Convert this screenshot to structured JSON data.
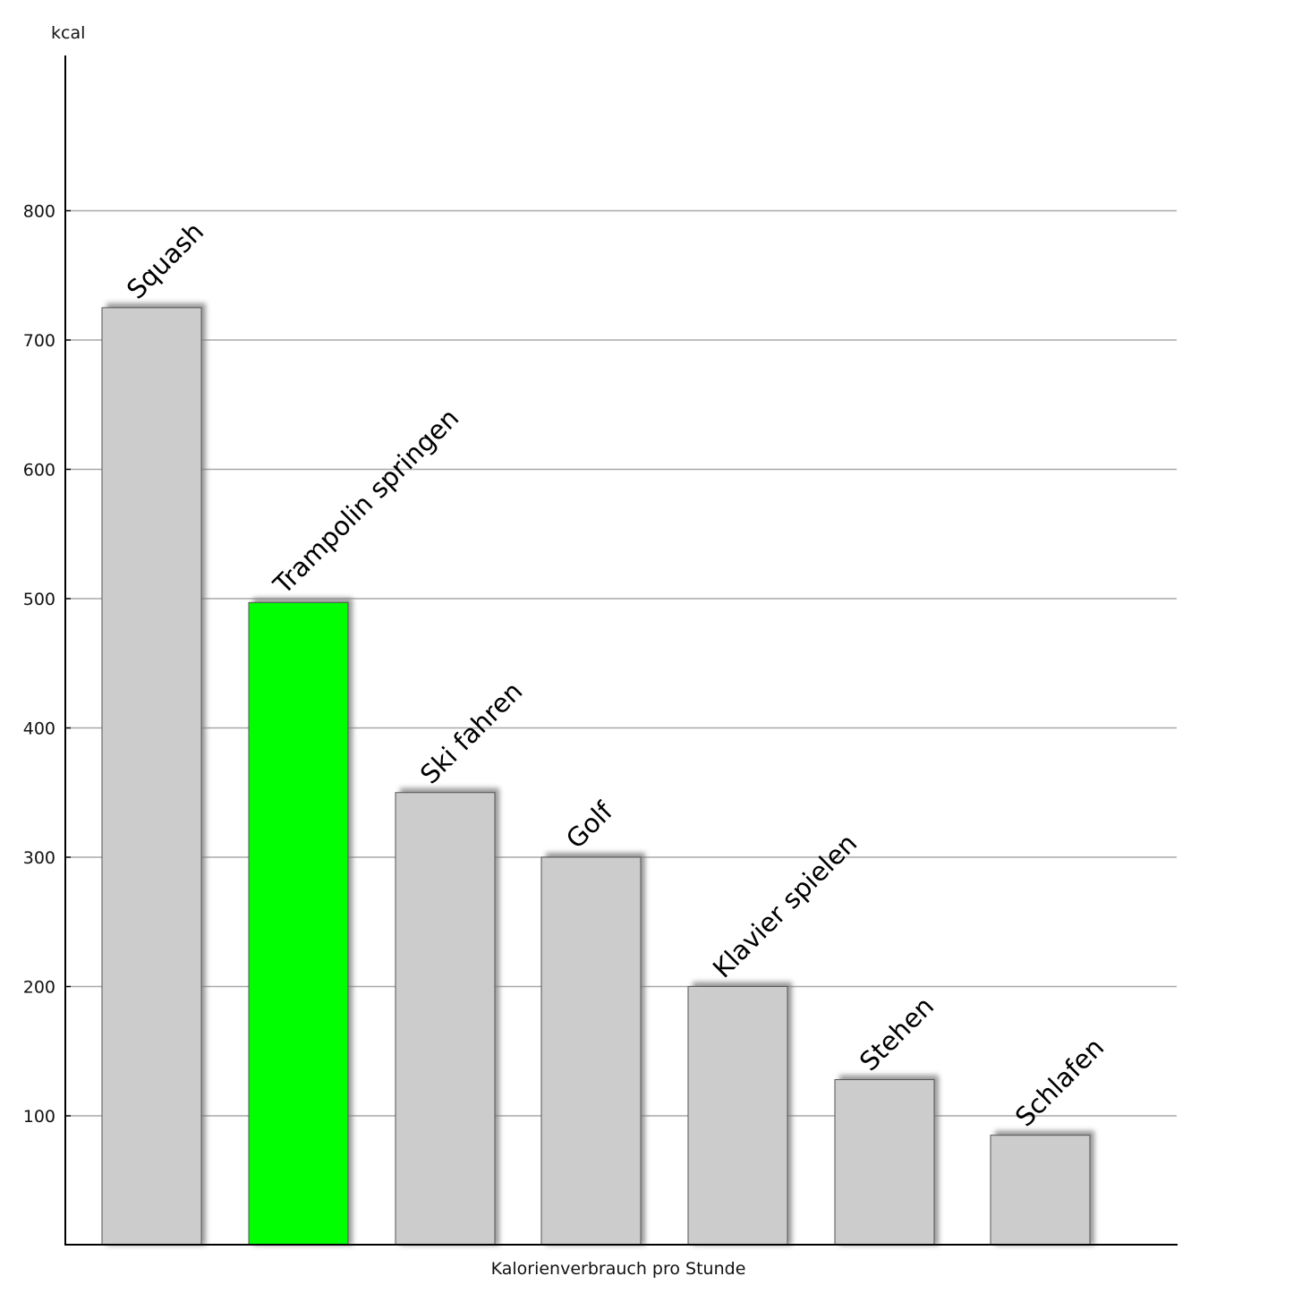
{
  "chart_data": {
    "type": "bar",
    "title": "",
    "xlabel": "Kalorienverbrauch pro Stunde",
    "ylabel": "kcal",
    "ylim": [
      0,
      920
    ],
    "yticks": [
      100,
      200,
      300,
      400,
      500,
      600,
      700,
      800
    ],
    "grid": true,
    "categories": [
      "Squash",
      "Trampolin springen",
      "Ski fahren",
      "Golf",
      "Klavier spielen",
      "Stehen",
      "Schlafen"
    ],
    "values": [
      725,
      497,
      350,
      300,
      200,
      128,
      85
    ],
    "colors": [
      "#cccccc",
      "#00ff00",
      "#cccccc",
      "#cccccc",
      "#cccccc",
      "#cccccc",
      "#cccccc"
    ],
    "highlight": "Trampolin springen"
  }
}
